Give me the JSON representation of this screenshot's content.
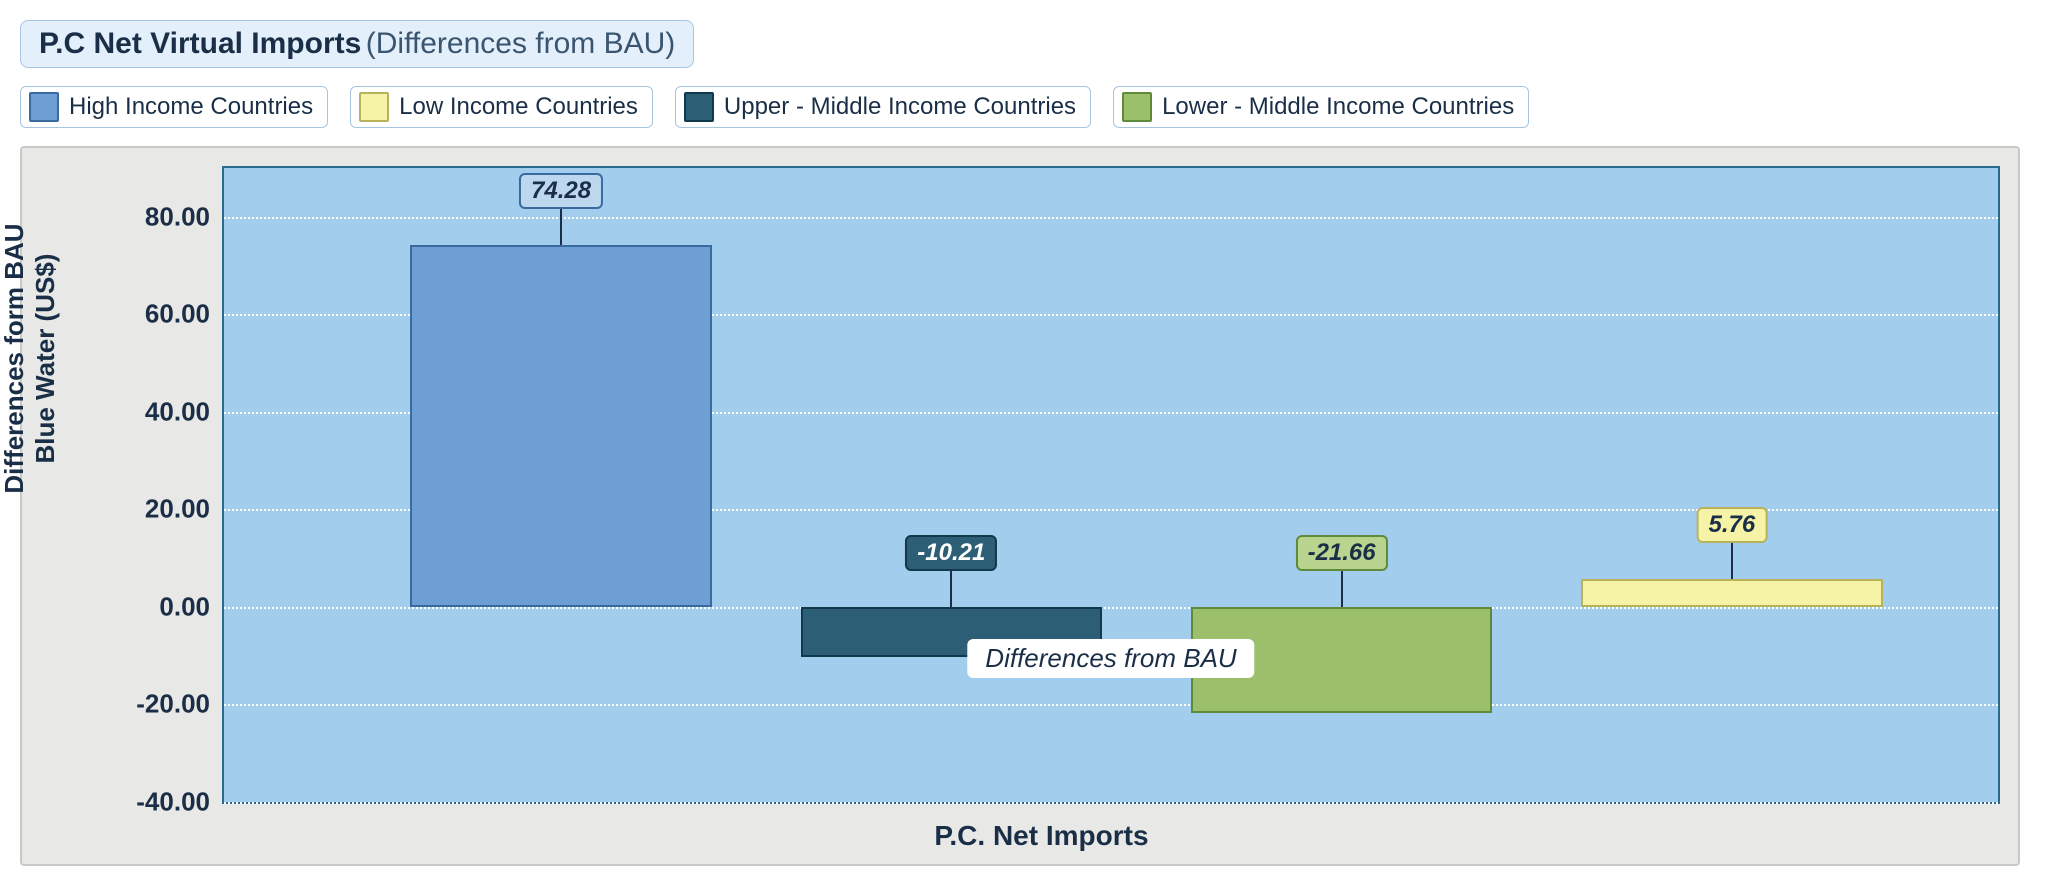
{
  "title": {
    "main": "P.C Net Virtual Imports",
    "sub": "(Differences from BAU)"
  },
  "legend": [
    {
      "label": "High Income Countries",
      "fill": "#6e9fd4",
      "border": "#3a6aa0"
    },
    {
      "label": "Low Income Countries",
      "fill": "#f6f3a6",
      "border": "#b8b25a"
    },
    {
      "label": "Upper - Middle Income Countries",
      "fill": "#2c5f76",
      "border": "#12394b"
    },
    {
      "label": "Lower - Middle Income Countries",
      "fill": "#9bbf6a",
      "border": "#5f8a3a"
    }
  ],
  "chart": {
    "type": "bar",
    "background_outer": "#e8e8e6",
    "background_plot": "#a3cdec",
    "plot_border": "#2a6a8f",
    "grid_color": "#ffffff",
    "ylabel": "Differences form BAU\nBlue Water (US$)",
    "xlabel": "P.C. Net Imports",
    "center_tag": "Differences from BAU",
    "ylim": [
      -40,
      90
    ],
    "yticks": [
      -40,
      -20,
      0,
      20,
      40,
      60,
      80
    ],
    "bars": [
      {
        "value": 74.28,
        "label": "74.28",
        "fill": "#6e9fd4",
        "border": "#3a6aa0",
        "label_fill": "#bcd7ee",
        "label_text": "#1a2f47"
      },
      {
        "value": -10.21,
        "label": "-10.21",
        "fill": "#2c5f76",
        "border": "#12394b",
        "label_fill": "#2c5f76",
        "label_text": "#ffffff"
      },
      {
        "value": -21.66,
        "label": "-21.66",
        "fill": "#9bbf6a",
        "border": "#5f8a3a",
        "label_fill": "#b8d48f",
        "label_text": "#1a2f47"
      },
      {
        "value": 5.76,
        "label": "5.76",
        "fill": "#f6f3a6",
        "border": "#b8b25a",
        "label_fill": "#f6f3a6",
        "label_text": "#1a2f47"
      }
    ],
    "bar_width_pct": 17,
    "bar_gap_pct": 5,
    "label_fontsize": 24,
    "axis_fontsize": 26
  }
}
